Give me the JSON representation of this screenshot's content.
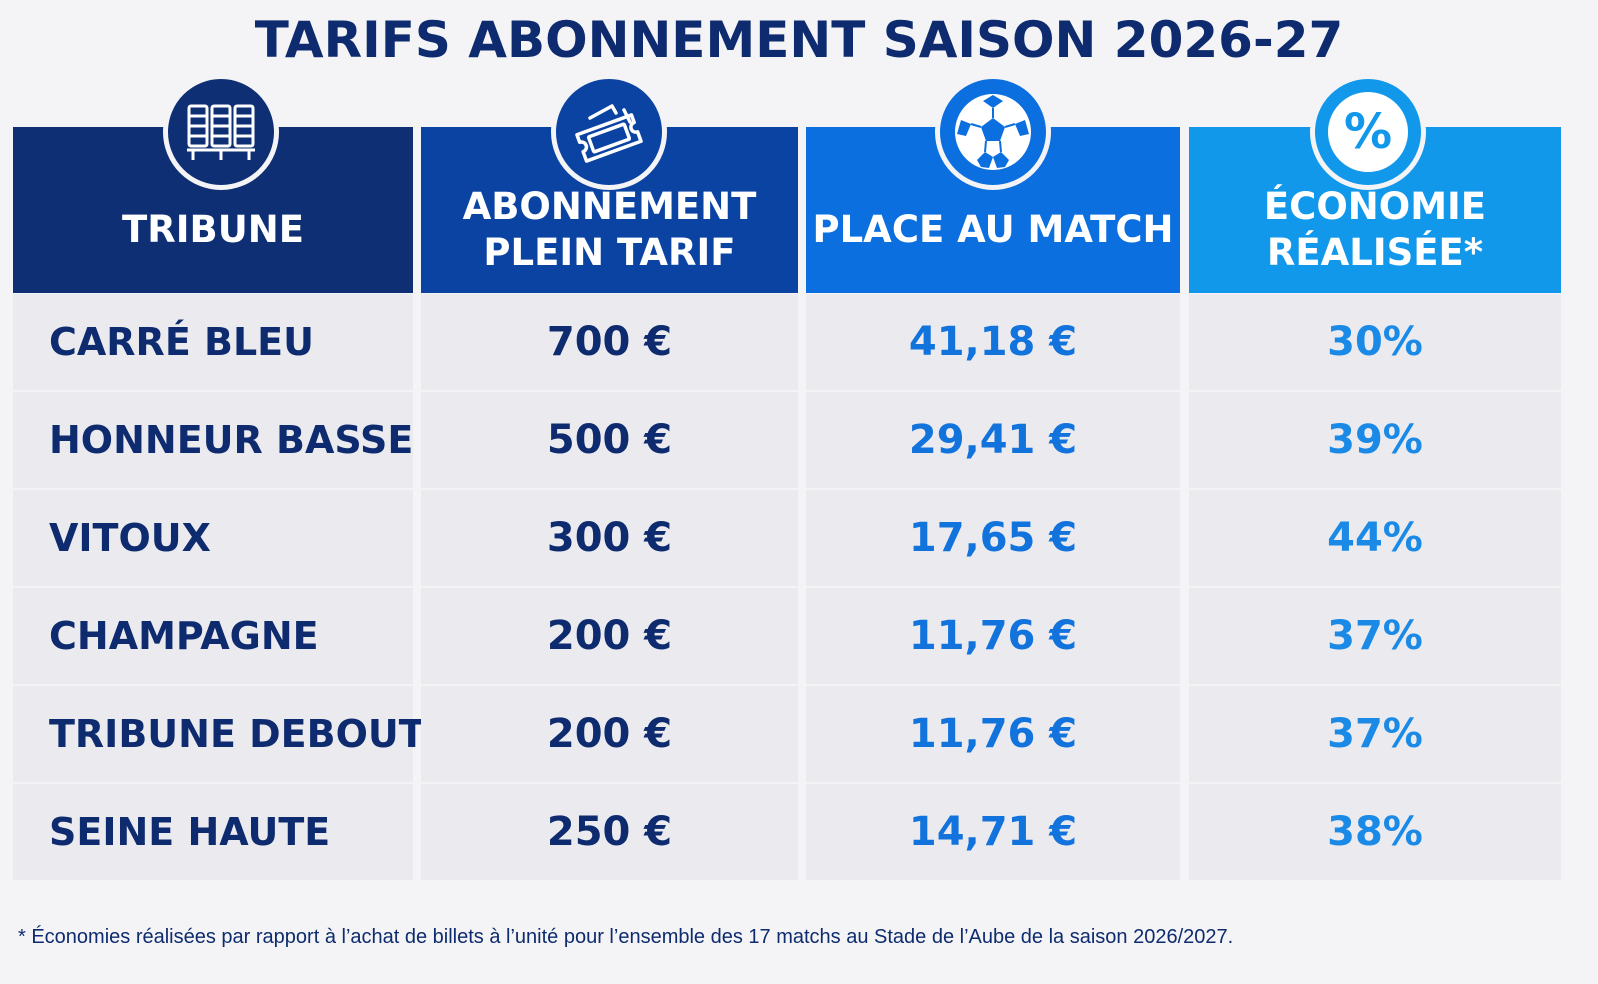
{
  "title": "TARIFS ABONNEMENT SAISON 2026-27",
  "colors": {
    "navy": "#0d2b6e",
    "header1": "#0f2f74",
    "header2": "#0b43a3",
    "header3": "#0b6fe0",
    "header4": "#1298eb",
    "accent_blue": "#1273dc",
    "accent_light": "#1a8ae6",
    "row_bg": "#ebebef",
    "page_bg": "#f4f4f6"
  },
  "headers": [
    {
      "label": "TRIBUNE",
      "icon": "stadium-seats-icon"
    },
    {
      "label": "ABONNEMENT\nPLEIN TARIF",
      "icon": "ticket-icon"
    },
    {
      "label": "PLACE AU MATCH",
      "icon": "soccer-ball-icon"
    },
    {
      "label": "ÉCONOMIE\nRÉALISÉE*",
      "icon": "percent-icon"
    }
  ],
  "rows": [
    {
      "tribune": "CARRÉ BLEU",
      "abonnement": "700 €",
      "place": "41,18 €",
      "economie": "30%"
    },
    {
      "tribune": "HONNEUR BASSE",
      "abonnement": "500 €",
      "place": "29,41 €",
      "economie": "39%"
    },
    {
      "tribune": "VITOUX",
      "abonnement": "300 €",
      "place": "17,65 €",
      "economie": "44%"
    },
    {
      "tribune": "CHAMPAGNE",
      "abonnement": "200 €",
      "place": "11,76 €",
      "economie": "37%"
    },
    {
      "tribune": "TRIBUNE DEBOUT",
      "abonnement": "200 €",
      "place": "11,76 €",
      "economie": "37%"
    },
    {
      "tribune": "SEINE HAUTE",
      "abonnement": "250 €",
      "place": "14,71 €",
      "economie": "38%"
    }
  ],
  "footnote": "* Économies réalisées par rapport à l’achat de billets à l’unité pour l’ensemble des 17 matchs au Stade de l’Aube de la saison 2026/2027."
}
